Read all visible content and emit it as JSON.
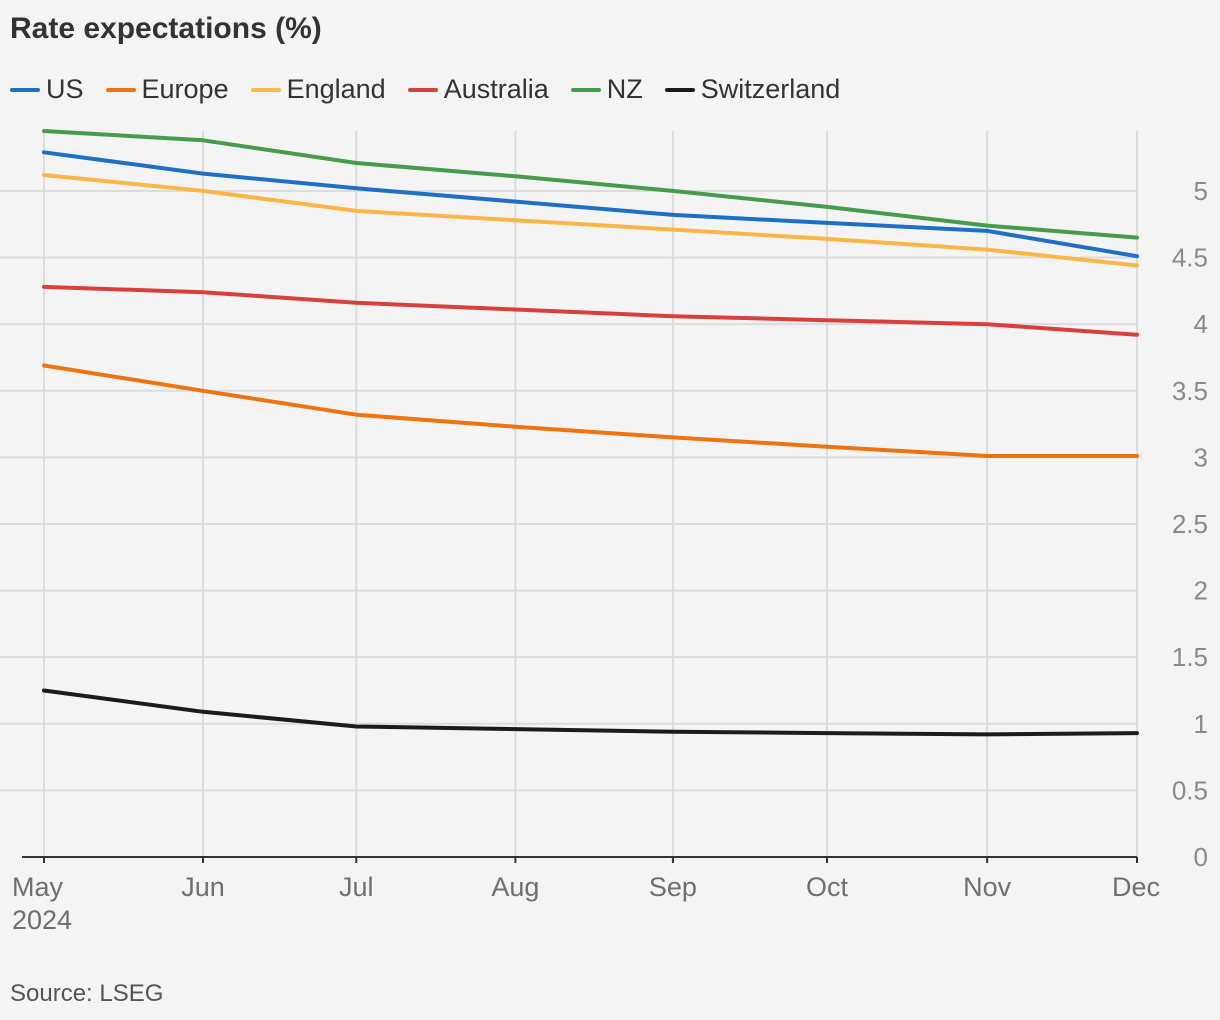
{
  "chart_data": {
    "type": "line",
    "title": "Rate expectations (%)",
    "source": "Source: LSEG",
    "xlabel": "",
    "ylabel": "",
    "x_labels": [
      "May",
      "Jun",
      "Jul",
      "Aug",
      "Sep",
      "Oct",
      "Nov",
      "Dec"
    ],
    "x_sublabel": "2024",
    "y_ticks": [
      "0",
      "0.5",
      "1",
      "1.5",
      "2",
      "2.5",
      "3",
      "3.5",
      "4",
      "4.5",
      "5"
    ],
    "ylim": [
      0,
      5.45
    ],
    "grid": true,
    "legend_position": "top-left",
    "series": [
      {
        "name": "US",
        "color": "#1f6fc4",
        "values": [
          5.29,
          5.13,
          5.02,
          4.92,
          4.82,
          4.76,
          4.7,
          4.51
        ]
      },
      {
        "name": "Europe",
        "color": "#ee7412",
        "values": [
          3.69,
          3.5,
          3.32,
          3.23,
          3.15,
          3.08,
          3.01,
          3.01
        ]
      },
      {
        "name": "England",
        "color": "#fbb648",
        "values": [
          5.12,
          5.0,
          4.85,
          4.78,
          4.71,
          4.64,
          4.56,
          4.44
        ]
      },
      {
        "name": "Australia",
        "color": "#d8403d",
        "values": [
          4.28,
          4.24,
          4.16,
          4.11,
          4.06,
          4.03,
          4.0,
          3.92
        ]
      },
      {
        "name": "NZ",
        "color": "#479b4d",
        "values": [
          5.45,
          5.38,
          5.21,
          5.11,
          5.0,
          4.88,
          4.74,
          4.65
        ]
      },
      {
        "name": "Switzerland",
        "color": "#1b1b1b",
        "values": [
          1.25,
          1.09,
          0.98,
          0.96,
          0.94,
          0.93,
          0.92,
          0.93
        ]
      }
    ]
  }
}
